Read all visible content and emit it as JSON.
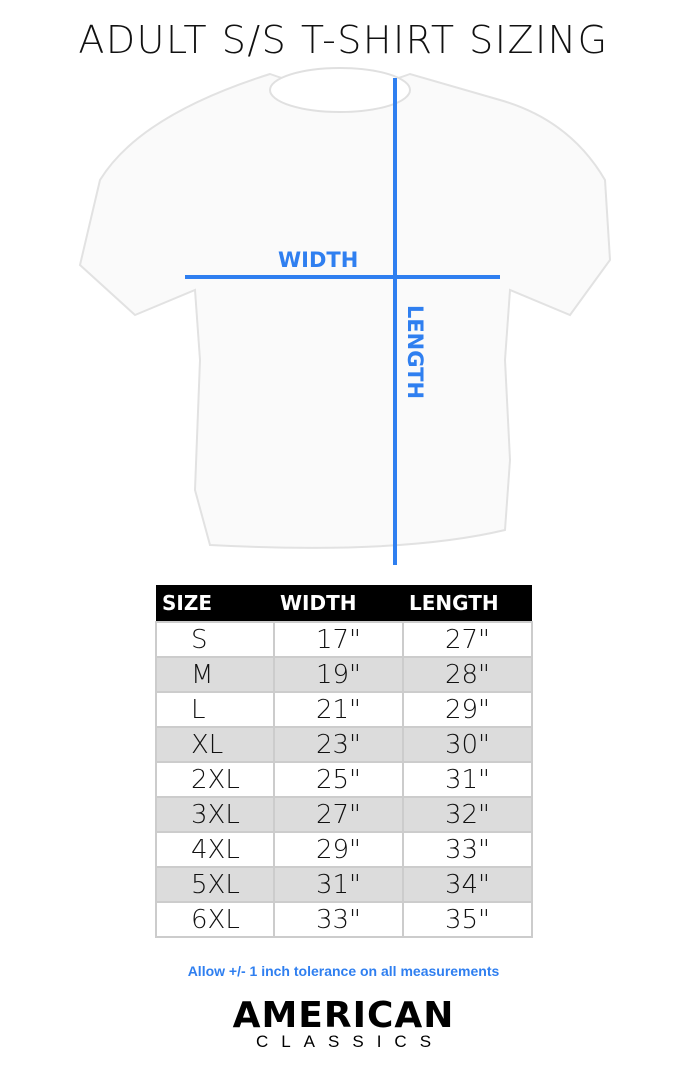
{
  "title": "ADULT S/S T-SHIRT SIZING",
  "diagram": {
    "width_label": "WIDTH",
    "length_label": "LENGTH",
    "line_color": "#2f7ff0"
  },
  "table": {
    "headers": [
      "SIZE",
      "WIDTH",
      "LENGTH"
    ],
    "rows": [
      [
        "S",
        "17\"",
        "27\""
      ],
      [
        "M",
        "19\"",
        "28\""
      ],
      [
        "L",
        "21\"",
        "29\""
      ],
      [
        "XL",
        "23\"",
        "30\""
      ],
      [
        "2XL",
        "25\"",
        "31\""
      ],
      [
        "3XL",
        "27\"",
        "32\""
      ],
      [
        "4XL",
        "29\"",
        "33\""
      ],
      [
        "5XL",
        "31\"",
        "34\""
      ],
      [
        "6XL",
        "33\"",
        "35\""
      ]
    ]
  },
  "note": "Allow +/- 1 inch tolerance on all measurements",
  "logo": {
    "line1": "AMERICAN",
    "line2": "CLASSICS"
  }
}
